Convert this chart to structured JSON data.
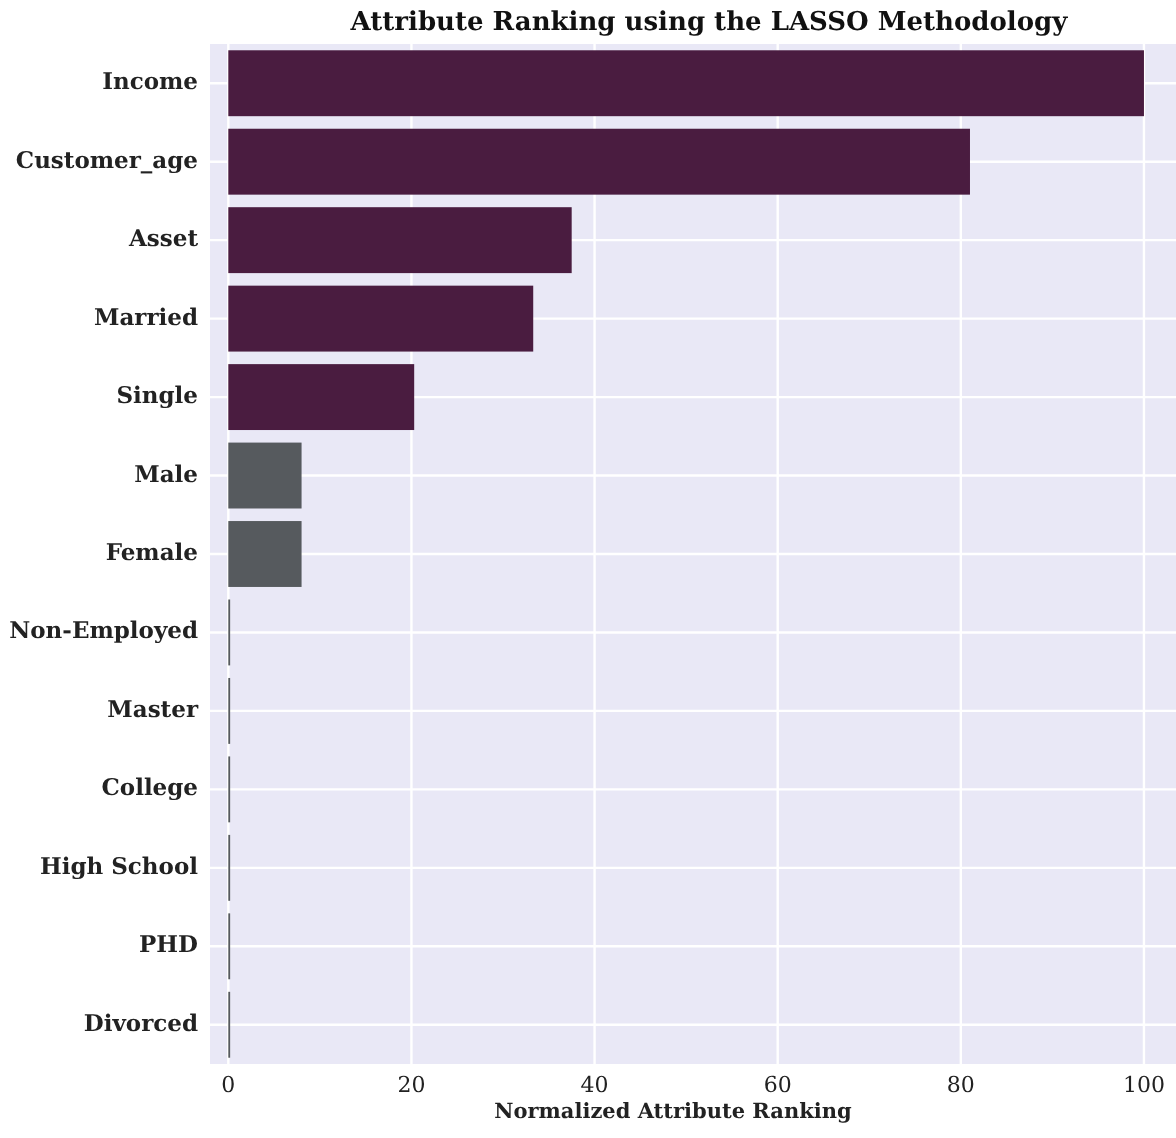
{
  "chart_data": {
    "type": "bar",
    "orientation": "horizontal",
    "title": "Attribute Ranking using the LASSO Methodology",
    "xlabel": "Normalized Attribute Ranking",
    "categories": [
      "Income",
      "Customer_age",
      "Asset",
      "Married",
      "Single",
      "Male",
      "Female",
      "Non-Employed",
      "Master",
      "College",
      "High School",
      "PHD",
      "Divorced"
    ],
    "values": [
      100,
      81,
      37.5,
      33.3,
      20.3,
      8,
      8,
      0.2,
      0.2,
      0.2,
      0.2,
      0.2,
      0.2
    ],
    "colors": [
      "#4a1c40",
      "#4a1c40",
      "#4a1c40",
      "#4a1c40",
      "#4a1c40",
      "#565a5e",
      "#565a5e",
      "#565a5e",
      "#565a5e",
      "#565a5e",
      "#565a5e",
      "#565a5e",
      "#565a5e"
    ],
    "xlim": [
      -2,
      103.5
    ],
    "xticks": [
      0,
      20,
      40,
      60,
      80,
      100
    ],
    "grid": true
  }
}
